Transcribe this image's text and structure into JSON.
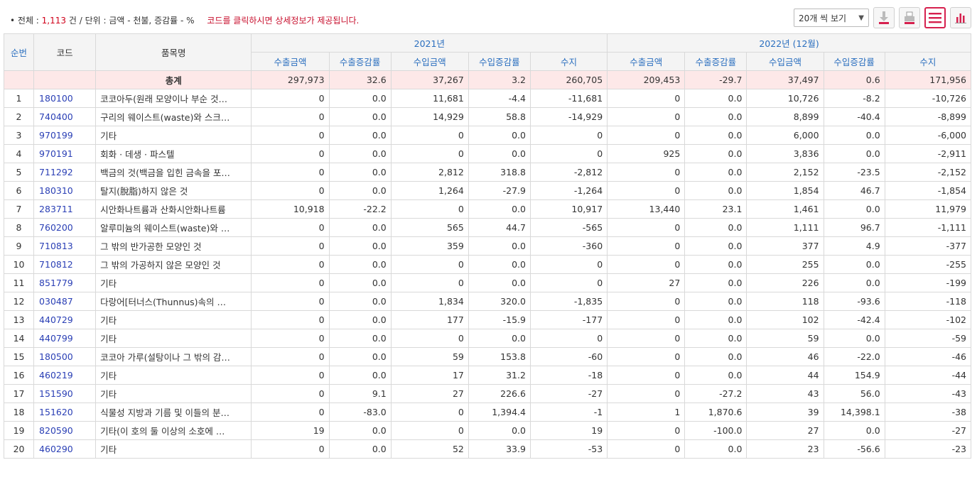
{
  "summary": {
    "bullet": "•",
    "total_label": "전체 : ",
    "total_count": "1,113",
    "total_unit": " 건",
    "unit_text": " / 단위 : 금액 - 천불, 증감률 - %",
    "notice": "코드를 클릭하시면 상세정보가 제공됩니다."
  },
  "controls": {
    "page_size": "20개 씩 보기",
    "icons": [
      "download-icon",
      "print-icon",
      "list-view-icon",
      "chart-view-icon"
    ],
    "active_color": "#d6204e"
  },
  "headers": {
    "seq": "순번",
    "code": "코드",
    "name": "품목명",
    "period1": "2021년",
    "period2": "2022년 (12월)",
    "sub": [
      "수출금액",
      "수출증감률",
      "수입금액",
      "수입증감률",
      "수지"
    ]
  },
  "total": {
    "label": "총계",
    "values": [
      "297,973",
      "32.6",
      "37,267",
      "3.2",
      "260,705",
      "209,453",
      "-29.7",
      "37,497",
      "0.6",
      "171,956"
    ]
  },
  "rows": [
    {
      "seq": "1",
      "code": "180100",
      "name": "코코아두(원래 모양이나 부순 것…",
      "v": [
        "0",
        "0.0",
        "11,681",
        "-4.4",
        "-11,681",
        "0",
        "0.0",
        "10,726",
        "-8.2",
        "-10,726"
      ]
    },
    {
      "seq": "2",
      "code": "740400",
      "name": "구리의 웨이스트(waste)와 스크…",
      "v": [
        "0",
        "0.0",
        "14,929",
        "58.8",
        "-14,929",
        "0",
        "0.0",
        "8,899",
        "-40.4",
        "-8,899"
      ]
    },
    {
      "seq": "3",
      "code": "970199",
      "name": "기타",
      "v": [
        "0",
        "0.0",
        "0",
        "0.0",
        "0",
        "0",
        "0.0",
        "6,000",
        "0.0",
        "-6,000"
      ]
    },
    {
      "seq": "4",
      "code": "970191",
      "name": "회화 · 데생 · 파스텔",
      "v": [
        "0",
        "0.0",
        "0",
        "0.0",
        "0",
        "925",
        "0.0",
        "3,836",
        "0.0",
        "-2,911"
      ]
    },
    {
      "seq": "5",
      "code": "711292",
      "name": "백금의 것(백금을 입힌 금속을 포…",
      "v": [
        "0",
        "0.0",
        "2,812",
        "318.8",
        "-2,812",
        "0",
        "0.0",
        "2,152",
        "-23.5",
        "-2,152"
      ]
    },
    {
      "seq": "6",
      "code": "180310",
      "name": "탈지(脫脂)하지 않은 것",
      "v": [
        "0",
        "0.0",
        "1,264",
        "-27.9",
        "-1,264",
        "0",
        "0.0",
        "1,854",
        "46.7",
        "-1,854"
      ]
    },
    {
      "seq": "7",
      "code": "283711",
      "name": "시안화나트륨과 산화시안화나트륨",
      "v": [
        "10,918",
        "-22.2",
        "0",
        "0.0",
        "10,917",
        "13,440",
        "23.1",
        "1,461",
        "0.0",
        "11,979"
      ]
    },
    {
      "seq": "8",
      "code": "760200",
      "name": "알루미늄의 웨이스트(waste)와 …",
      "v": [
        "0",
        "0.0",
        "565",
        "44.7",
        "-565",
        "0",
        "0.0",
        "1,111",
        "96.7",
        "-1,111"
      ]
    },
    {
      "seq": "9",
      "code": "710813",
      "name": "그 밖의 반가공한 모양인 것",
      "v": [
        "0",
        "0.0",
        "359",
        "0.0",
        "-360",
        "0",
        "0.0",
        "377",
        "4.9",
        "-377"
      ]
    },
    {
      "seq": "10",
      "code": "710812",
      "name": "그 밖의 가공하지 않은 모양인 것",
      "v": [
        "0",
        "0.0",
        "0",
        "0.0",
        "0",
        "0",
        "0.0",
        "255",
        "0.0",
        "-255"
      ]
    },
    {
      "seq": "11",
      "code": "851779",
      "name": "기타",
      "v": [
        "0",
        "0.0",
        "0",
        "0.0",
        "0",
        "27",
        "0.0",
        "226",
        "0.0",
        "-199"
      ]
    },
    {
      "seq": "12",
      "code": "030487",
      "name": "다랑어[터너스(Thunnus)속의 …",
      "v": [
        "0",
        "0.0",
        "1,834",
        "320.0",
        "-1,835",
        "0",
        "0.0",
        "118",
        "-93.6",
        "-118"
      ]
    },
    {
      "seq": "13",
      "code": "440729",
      "name": "기타",
      "v": [
        "0",
        "0.0",
        "177",
        "-15.9",
        "-177",
        "0",
        "0.0",
        "102",
        "-42.4",
        "-102"
      ]
    },
    {
      "seq": "14",
      "code": "440799",
      "name": "기타",
      "v": [
        "0",
        "0.0",
        "0",
        "0.0",
        "0",
        "0",
        "0.0",
        "59",
        "0.0",
        "-59"
      ]
    },
    {
      "seq": "15",
      "code": "180500",
      "name": "코코아 가루(설탕이나 그 밖의 감…",
      "v": [
        "0",
        "0.0",
        "59",
        "153.8",
        "-60",
        "0",
        "0.0",
        "46",
        "-22.0",
        "-46"
      ]
    },
    {
      "seq": "16",
      "code": "460219",
      "name": "기타",
      "v": [
        "0",
        "0.0",
        "17",
        "31.2",
        "-18",
        "0",
        "0.0",
        "44",
        "154.9",
        "-44"
      ]
    },
    {
      "seq": "17",
      "code": "151590",
      "name": "기타",
      "v": [
        "0",
        "9.1",
        "27",
        "226.6",
        "-27",
        "0",
        "-27.2",
        "43",
        "56.0",
        "-43"
      ]
    },
    {
      "seq": "18",
      "code": "151620",
      "name": "식물성 지방과 기름 및 이들의 분…",
      "v": [
        "0",
        "-83.0",
        "0",
        "1,394.4",
        "-1",
        "1",
        "1,870.6",
        "39",
        "14,398.1",
        "-38"
      ]
    },
    {
      "seq": "19",
      "code": "820590",
      "name": "기타(이 호의 둘 이상의 소호에 …",
      "v": [
        "19",
        "0.0",
        "0",
        "0.0",
        "19",
        "0",
        "-100.0",
        "27",
        "0.0",
        "-27"
      ]
    },
    {
      "seq": "20",
      "code": "460290",
      "name": "기타",
      "v": [
        "0",
        "0.0",
        "52",
        "33.9",
        "-53",
        "0",
        "0.0",
        "23",
        "-56.6",
        "-23"
      ]
    }
  ]
}
